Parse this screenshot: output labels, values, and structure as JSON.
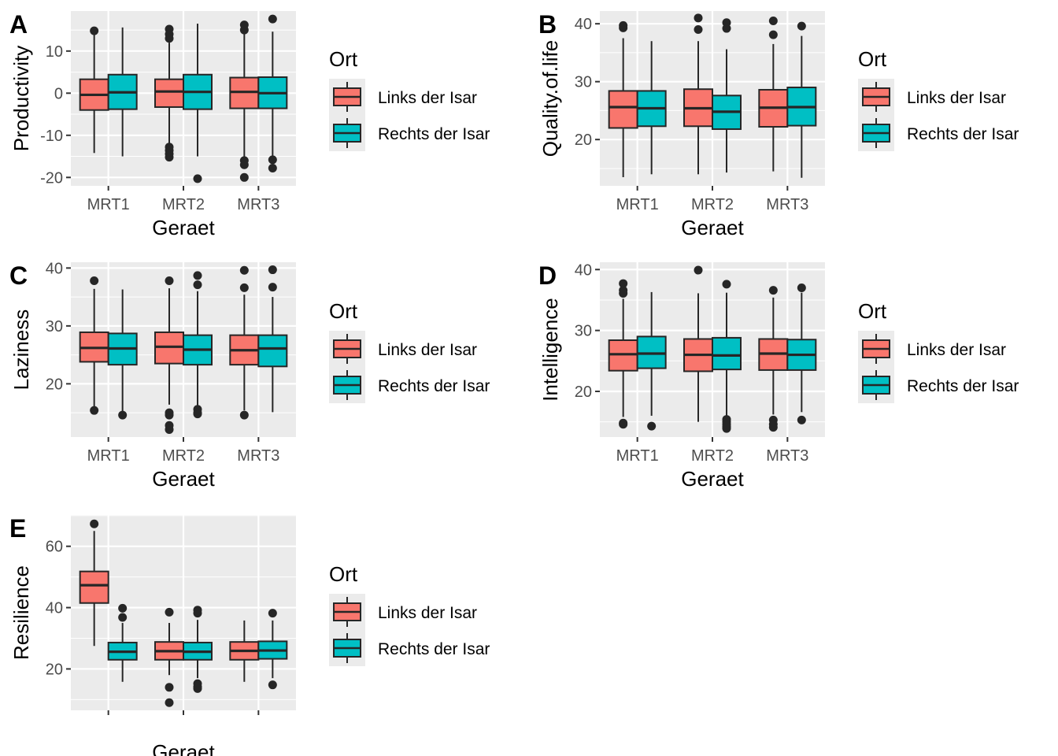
{
  "figure": {
    "panel_background": "#ebebeb",
    "grid_color": "#ffffff",
    "outlier_color": "#262626"
  },
  "legend": {
    "title": "Ort",
    "entries": [
      {
        "label": "Links der Isar",
        "color": "#f8766d"
      },
      {
        "label": "Rechts der Isar",
        "color": "#00bfc4"
      }
    ]
  },
  "chart_data": [
    {
      "tag": "A",
      "type": "boxplot",
      "xlabel": "Geraet",
      "ylabel": "Productivity",
      "categories": [
        "MRT1",
        "MRT2",
        "MRT3"
      ],
      "ylim": [
        -22,
        19.5
      ],
      "yticks": [
        -20,
        -10,
        0,
        10
      ],
      "grid": true,
      "legend_position": "right",
      "series": [
        {
          "name": "Links der Isar",
          "color": "#f8766d",
          "boxes": [
            {
              "low": -14.2,
              "q1": -4.0,
              "median": -0.4,
              "q3": 3.3,
              "high": 14.6,
              "outliers": [
                14.8
              ]
            },
            {
              "low": -12.0,
              "q1": -3.3,
              "median": 0.4,
              "q3": 3.3,
              "high": 12.0,
              "outliers": [
                15.2,
                14.0,
                13.0,
                -12.8,
                -13.6,
                -14.4,
                -15.2
              ]
            },
            {
              "low": -15.0,
              "q1": -3.6,
              "median": 0.3,
              "q3": 3.7,
              "high": 14.0,
              "outliers": [
                16.2,
                15.0,
                -16.0,
                -17.0,
                -20.0
              ]
            }
          ]
        },
        {
          "name": "Rechts der Isar",
          "color": "#00bfc4",
          "boxes": [
            {
              "low": -15.0,
              "q1": -3.8,
              "median": 0.2,
              "q3": 4.4,
              "high": 15.6,
              "outliers": []
            },
            {
              "low": -15.0,
              "q1": -3.8,
              "median": 0.3,
              "q3": 4.4,
              "high": 16.5,
              "outliers": [
                -20.3
              ]
            },
            {
              "low": -15.0,
              "q1": -3.6,
              "median": 0.0,
              "q3": 3.8,
              "high": 14.6,
              "outliers": [
                17.6,
                -15.8,
                -17.8
              ]
            }
          ]
        }
      ]
    },
    {
      "tag": "B",
      "type": "boxplot",
      "xlabel": "Geraet",
      "ylabel": "Quality.of.life",
      "categories": [
        "MRT1",
        "MRT2",
        "MRT3"
      ],
      "ylim": [
        12.0,
        42.2
      ],
      "yticks": [
        20,
        30,
        40
      ],
      "grid": true,
      "legend_position": "right",
      "series": [
        {
          "name": "Links der Isar",
          "color": "#f8766d",
          "boxes": [
            {
              "low": 13.5,
              "q1": 22.0,
              "median": 25.6,
              "q3": 28.4,
              "high": 37.5,
              "outliers": [
                39.7,
                39.3
              ]
            },
            {
              "low": 14.0,
              "q1": 22.3,
              "median": 25.4,
              "q3": 28.7,
              "high": 37.0,
              "outliers": [
                41.0,
                39.0
              ]
            },
            {
              "low": 14.5,
              "q1": 22.2,
              "median": 25.5,
              "q3": 28.6,
              "high": 36.5,
              "outliers": [
                40.5,
                38.1
              ]
            }
          ]
        },
        {
          "name": "Rechts der Isar",
          "color": "#00bfc4",
          "boxes": [
            {
              "low": 14.0,
              "q1": 22.3,
              "median": 25.4,
              "q3": 28.4,
              "high": 37.0,
              "outliers": []
            },
            {
              "low": 14.3,
              "q1": 21.8,
              "median": 24.8,
              "q3": 27.6,
              "high": 35.6,
              "outliers": [
                40.2,
                39.2
              ]
            },
            {
              "low": 13.4,
              "q1": 22.4,
              "median": 25.6,
              "q3": 29.0,
              "high": 37.9,
              "outliers": [
                39.6
              ]
            }
          ]
        }
      ]
    },
    {
      "tag": "C",
      "type": "boxplot",
      "xlabel": "Geraet",
      "ylabel": "Laziness",
      "categories": [
        "MRT1",
        "MRT2",
        "MRT3"
      ],
      "ylim": [
        10.8,
        41.0
      ],
      "yticks": [
        20,
        30,
        40
      ],
      "grid": true,
      "legend_position": "right",
      "series": [
        {
          "name": "Links der Isar",
          "color": "#f8766d",
          "boxes": [
            {
              "low": 16.0,
              "q1": 23.8,
              "median": 26.2,
              "q3": 28.9,
              "high": 36.4,
              "outliers": [
                37.8,
                15.4
              ]
            },
            {
              "low": 16.4,
              "q1": 23.5,
              "median": 26.4,
              "q3": 28.9,
              "high": 36.5,
              "outliers": [
                37.8,
                15.0,
                14.6,
                12.8,
                12.1
              ]
            },
            {
              "low": 15.4,
              "q1": 23.3,
              "median": 25.8,
              "q3": 28.4,
              "high": 35.4,
              "outliers": [
                39.6,
                36.6,
                14.6
              ]
            }
          ]
        },
        {
          "name": "Rechts der Isar",
          "color": "#00bfc4",
          "boxes": [
            {
              "low": 14.6,
              "q1": 23.3,
              "median": 26.1,
              "q3": 28.7,
              "high": 36.3,
              "outliers": [
                14.6
              ]
            },
            {
              "low": 16.0,
              "q1": 23.3,
              "median": 25.9,
              "q3": 28.4,
              "high": 36.0,
              "outliers": [
                38.7,
                37.1,
                15.6,
                15.0,
                14.8
              ]
            },
            {
              "low": 15.1,
              "q1": 23.0,
              "median": 26.1,
              "q3": 28.4,
              "high": 35.0,
              "outliers": [
                39.7,
                36.7
              ]
            }
          ]
        }
      ]
    },
    {
      "tag": "D",
      "type": "boxplot",
      "xlabel": "Geraet",
      "ylabel": "Intelligence",
      "categories": [
        "MRT1",
        "MRT2",
        "MRT3"
      ],
      "ylim": [
        12.5,
        41.2
      ],
      "yticks": [
        20,
        30,
        40
      ],
      "grid": true,
      "legend_position": "right",
      "series": [
        {
          "name": "Links der Isar",
          "color": "#f8766d",
          "boxes": [
            {
              "low": 15.8,
              "q1": 23.4,
              "median": 26.1,
              "q3": 28.4,
              "high": 35.2,
              "outliers": [
                37.7,
                36.6,
                36.1,
                14.8,
                14.6
              ]
            },
            {
              "low": 15.0,
              "q1": 23.3,
              "median": 26.0,
              "q3": 28.6,
              "high": 36.1,
              "outliers": [
                39.9
              ]
            },
            {
              "low": 16.2,
              "q1": 23.5,
              "median": 26.2,
              "q3": 28.6,
              "high": 35.4,
              "outliers": [
                36.6,
                15.3,
                14.6,
                14.1
              ]
            }
          ]
        },
        {
          "name": "Rechts der Isar",
          "color": "#00bfc4",
          "boxes": [
            {
              "low": 16.0,
              "q1": 23.8,
              "median": 26.2,
              "q3": 29.0,
              "high": 36.3,
              "outliers": [
                14.3
              ]
            },
            {
              "low": 16.0,
              "q1": 23.6,
              "median": 25.9,
              "q3": 28.8,
              "high": 36.2,
              "outliers": [
                37.6,
                15.4,
                15.0,
                14.6,
                14.2,
                13.9
              ]
            },
            {
              "low": 16.6,
              "q1": 23.5,
              "median": 26.0,
              "q3": 28.5,
              "high": 36.2,
              "outliers": [
                37.0,
                15.3
              ]
            }
          ]
        }
      ]
    },
    {
      "tag": "E",
      "type": "boxplot",
      "xlabel": "Geraet",
      "ylabel": "Resilience",
      "categories": [
        "",
        "",
        ""
      ],
      "ylim": [
        6.5,
        70.2
      ],
      "yticks": [
        20,
        40,
        60
      ],
      "grid": true,
      "legend_position": "right",
      "series": [
        {
          "name": "Links der Isar",
          "color": "#f8766d",
          "boxes": [
            {
              "low": 27.5,
              "q1": 41.5,
              "median": 47.3,
              "q3": 51.8,
              "high": 65.0,
              "outliers": [
                67.3
              ]
            },
            {
              "low": 18.0,
              "q1": 23.0,
              "median": 25.8,
              "q3": 28.8,
              "high": 35.0,
              "outliers": [
                38.5,
                14.0,
                9.0
              ]
            },
            {
              "low": 15.8,
              "q1": 23.0,
              "median": 25.9,
              "q3": 28.8,
              "high": 35.8,
              "outliers": []
            }
          ]
        },
        {
          "name": "Rechts der Isar",
          "color": "#00bfc4",
          "boxes": [
            {
              "low": 15.8,
              "q1": 23.0,
              "median": 25.6,
              "q3": 28.6,
              "high": 35.0,
              "outliers": [
                39.8,
                36.8
              ]
            },
            {
              "low": 17.0,
              "q1": 23.0,
              "median": 25.6,
              "q3": 28.6,
              "high": 36.0,
              "outliers": [
                39.2,
                38.2,
                15.2,
                14.2,
                13.6
              ]
            },
            {
              "low": 17.0,
              "q1": 23.3,
              "median": 26.0,
              "q3": 29.0,
              "high": 35.8,
              "outliers": [
                38.2,
                14.8
              ]
            }
          ]
        }
      ]
    }
  ]
}
